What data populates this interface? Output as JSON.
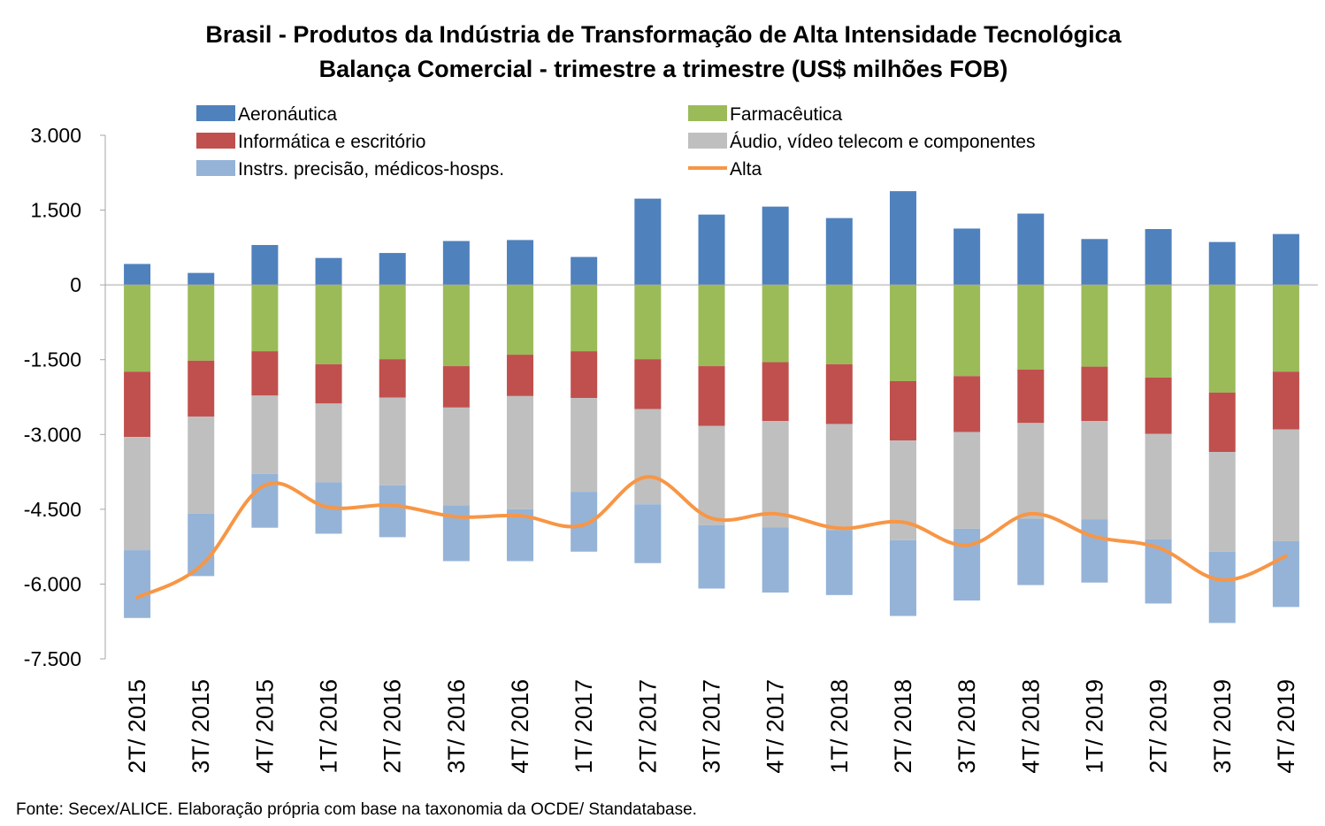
{
  "chart_data": {
    "type": "bar",
    "stacked": true,
    "title": "Brasil - Produtos da Indústria de Transformação de Alta Intensidade Tecnológica",
    "subtitle": "Balança Comercial - trimestre a trimestre (US$ milhões FOB)",
    "source": "Fonte: Secex/ALICE. Elaboração própria com base na taxonomia da OCDE/ Standatabase.",
    "xlabel": "",
    "ylabel": "",
    "ylim": [
      -7500,
      3000
    ],
    "yticks": [
      3000,
      1500,
      0,
      -1500,
      -3000,
      -4500,
      -6000,
      -7500
    ],
    "ytick_labels": [
      "3.000",
      "1.500",
      "0",
      "-1.500",
      "-3.000",
      "-4.500",
      "-6.000",
      "-7.500"
    ],
    "grid": false,
    "legend_position": "top",
    "categories": [
      "2T/ 2015",
      "3T/ 2015",
      "4T/ 2015",
      "1T/ 2016",
      "2T/ 2016",
      "3T/ 2016",
      "4T/ 2016",
      "1T/ 2017",
      "2T/ 2017",
      "3T/ 2017",
      "4T/ 2017",
      "1T/ 2018",
      "2T/ 2018",
      "3T/ 2018",
      "4T/ 2018",
      "1T/ 2019",
      "2T/ 2019",
      "3T/ 2019",
      "4T/ 2019"
    ],
    "series": [
      {
        "name": "Aeronáutica",
        "kind": "bar",
        "color": "#4F81BD",
        "values": [
          420,
          240,
          800,
          540,
          640,
          880,
          900,
          560,
          1730,
          1410,
          1570,
          1340,
          1880,
          1130,
          1430,
          920,
          1120,
          860,
          1020
        ]
      },
      {
        "name": "Farmacêutica",
        "kind": "bar",
        "color": "#9BBB59",
        "values": [
          -1740,
          -1520,
          -1330,
          -1590,
          -1490,
          -1630,
          -1400,
          -1330,
          -1490,
          -1630,
          -1550,
          -1590,
          -1930,
          -1830,
          -1700,
          -1640,
          -1860,
          -2160,
          -1740
        ]
      },
      {
        "name": "Informática e escritório",
        "kind": "bar",
        "color": "#C0504D",
        "values": [
          -1310,
          -1120,
          -890,
          -790,
          -770,
          -830,
          -830,
          -940,
          -1000,
          -1200,
          -1180,
          -1200,
          -1190,
          -1120,
          -1070,
          -1090,
          -1130,
          -1190,
          -1160
        ]
      },
      {
        "name": "Áudio, vídeo telecom e componentes",
        "kind": "bar",
        "color": "#BFBFBF",
        "values": [
          -2270,
          -1950,
          -1570,
          -1580,
          -1760,
          -1960,
          -2270,
          -1880,
          -1910,
          -1990,
          -2130,
          -2130,
          -2000,
          -1940,
          -1920,
          -1970,
          -2110,
          -2000,
          -2240
        ]
      },
      {
        "name": "Instrs. precisão, médicos-hosps.",
        "kind": "bar",
        "color": "#95B3D7",
        "values": [
          -1360,
          -1250,
          -1080,
          -1030,
          -1040,
          -1120,
          -1040,
          -1200,
          -1180,
          -1270,
          -1310,
          -1300,
          -1520,
          -1440,
          -1330,
          -1270,
          -1290,
          -1430,
          -1320
        ]
      },
      {
        "name": "Alta",
        "kind": "line",
        "color": "#F79646",
        "values": [
          -6270,
          -5630,
          -4020,
          -4460,
          -4420,
          -4650,
          -4630,
          -4810,
          -3850,
          -4680,
          -4590,
          -4880,
          -4760,
          -5220,
          -4590,
          -5050,
          -5270,
          -5920,
          -5440
        ]
      }
    ]
  }
}
